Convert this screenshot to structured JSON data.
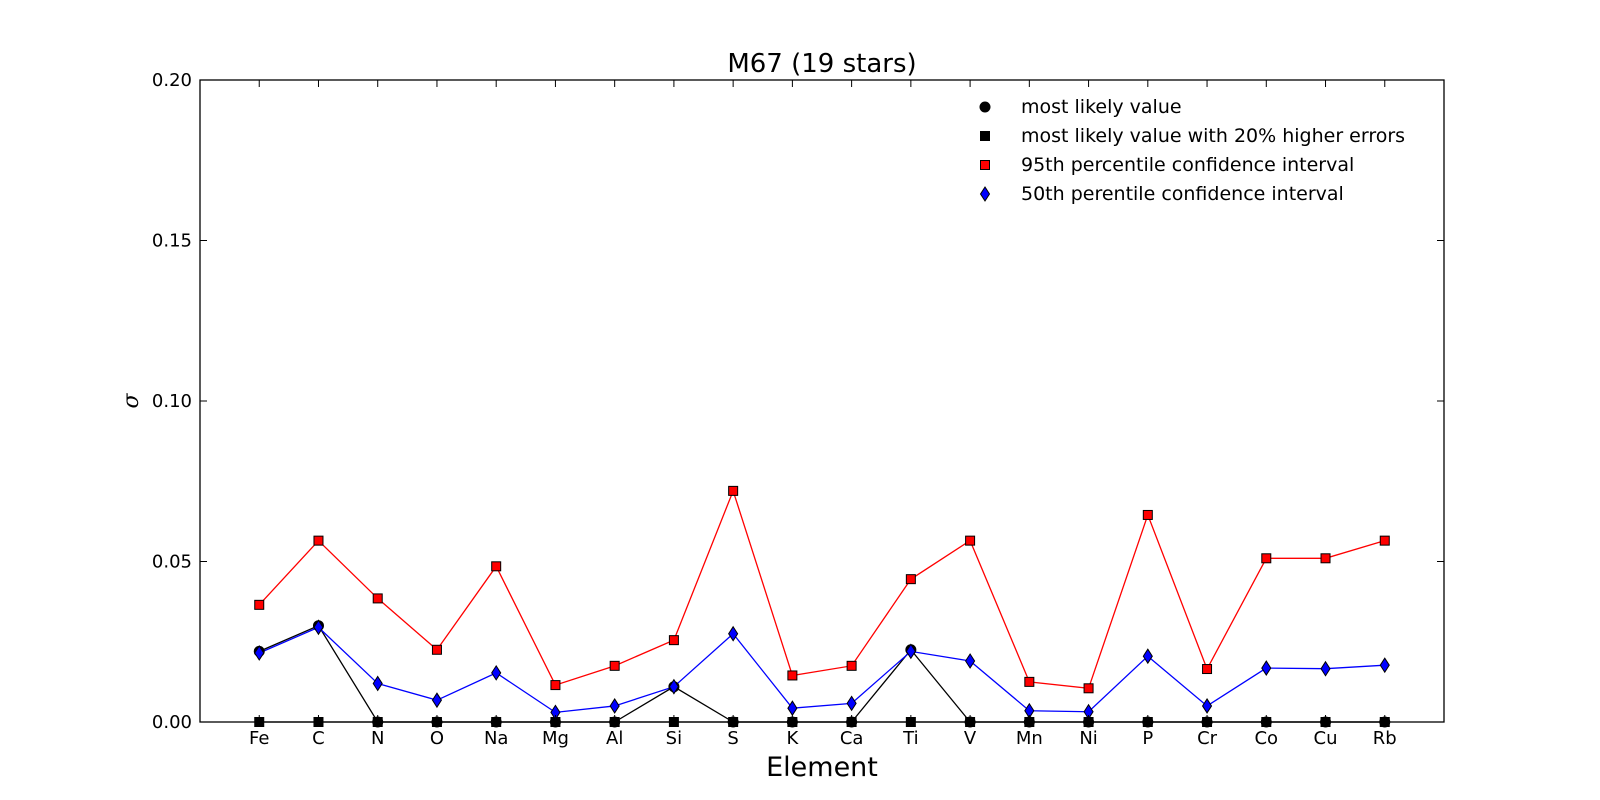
{
  "chart_data": {
    "type": "line",
    "title": "M67 (19 stars)",
    "xlabel": "Element",
    "ylabel": "σ",
    "ylim": [
      0,
      0.2
    ],
    "yticks": [
      "0.00",
      "0.05",
      "0.10",
      "0.15",
      "0.20"
    ],
    "yticks_values": [
      0,
      0.05,
      0.1,
      0.15,
      0.2
    ],
    "grid": false,
    "legend_position": "top-right",
    "categories": [
      "Fe",
      "C",
      "N",
      "O",
      "Na",
      "Mg",
      "Al",
      "Si",
      "S",
      "K",
      "Ca",
      "Ti",
      "V",
      "Mn",
      "Ni",
      "P",
      "Cr",
      "Co",
      "Cu",
      "Rb"
    ],
    "series": [
      {
        "name": "most likely value",
        "marker": "circle",
        "color": "#000000",
        "values": [
          0.022,
          0.03,
          0.0,
          0.0,
          0.0,
          0.0,
          0.0,
          0.011,
          0.0,
          0.0,
          0.0,
          0.0225,
          0.0,
          0.0,
          0.0,
          0.0,
          0.0,
          0.0,
          0.0,
          0.0
        ]
      },
      {
        "name": "most likely value with 20% higher errors",
        "marker": "square",
        "color": "#000000",
        "values": [
          0.0,
          0.0,
          0.0,
          0.0,
          0.0,
          0.0,
          0.0,
          0.0,
          0.0,
          0.0,
          0.0,
          0.0,
          0.0,
          0.0,
          0.0,
          0.0,
          0.0,
          0.0,
          0.0,
          0.0
        ]
      },
      {
        "name": "95th percentile confidence interval",
        "marker": "square",
        "color": "#ff0000",
        "values": [
          0.0365,
          0.0565,
          0.0385,
          0.0225,
          0.0485,
          0.0115,
          0.0175,
          0.0255,
          0.072,
          0.0145,
          0.0175,
          0.0445,
          0.0565,
          0.0125,
          0.0105,
          0.0645,
          0.0165,
          0.051,
          0.051,
          0.0565
        ]
      },
      {
        "name": "50th perentile confidence interval",
        "marker": "diamond",
        "color": "#0000ff",
        "values": [
          0.0215,
          0.0295,
          0.012,
          0.0068,
          0.0153,
          0.003,
          0.005,
          0.011,
          0.0275,
          0.0043,
          0.0058,
          0.022,
          0.019,
          0.0035,
          0.0032,
          0.0205,
          0.005,
          0.0168,
          0.0166,
          0.0177
        ]
      }
    ]
  }
}
